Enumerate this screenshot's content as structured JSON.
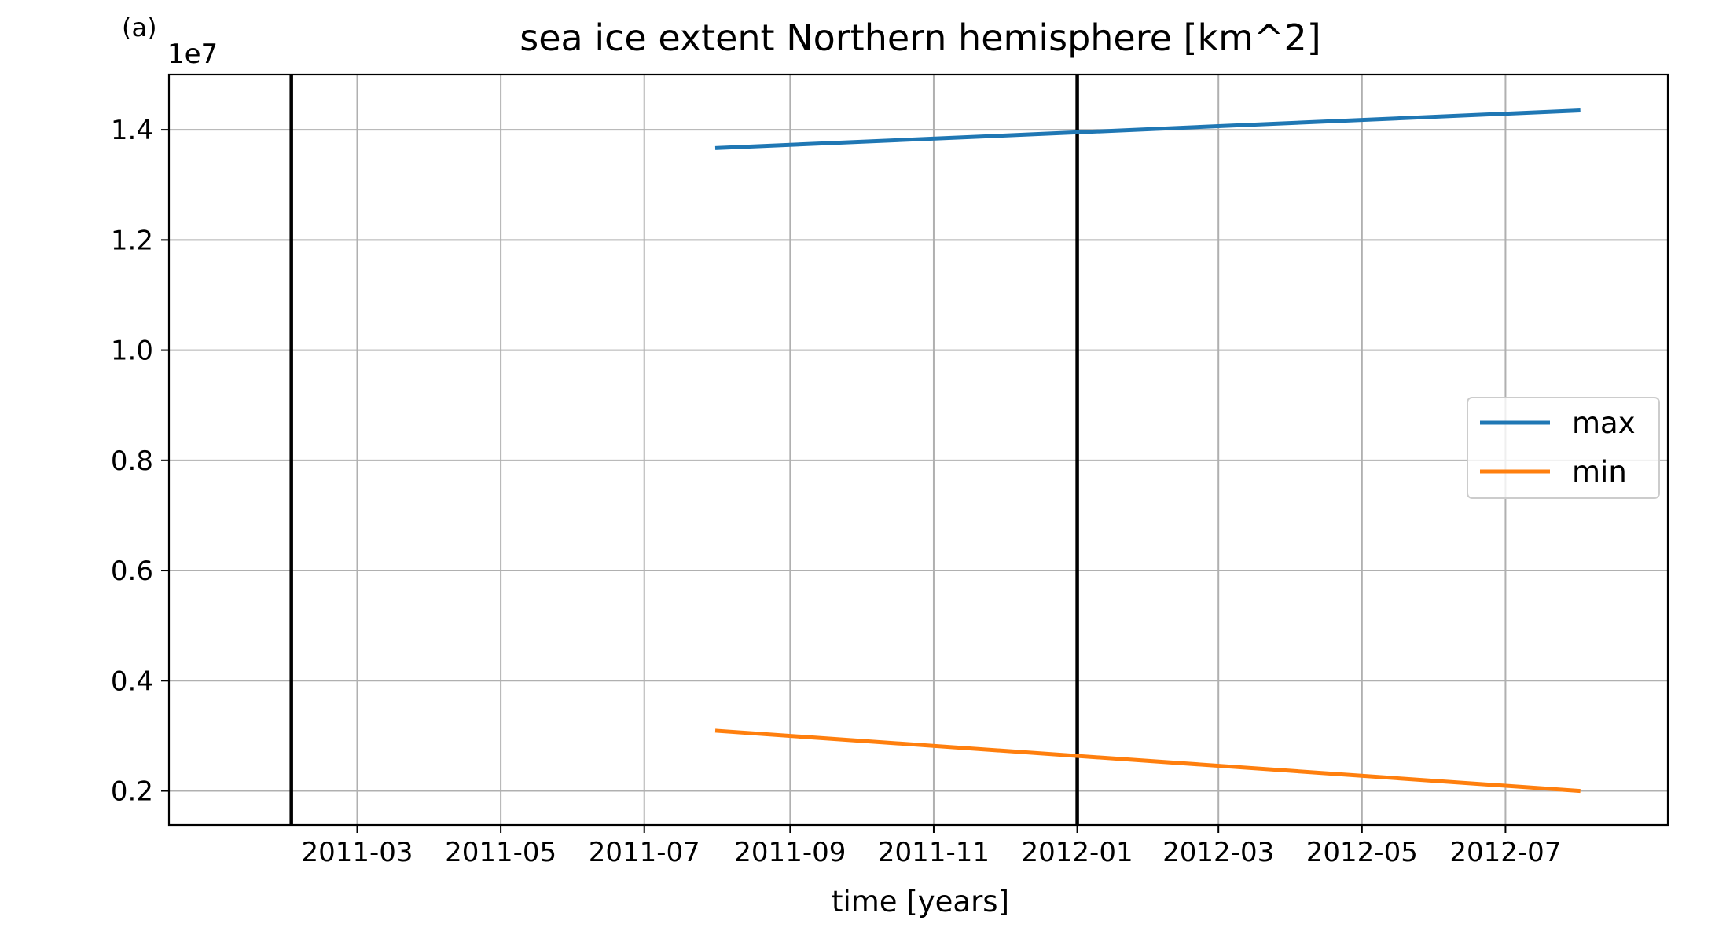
{
  "panel_label": "(a)",
  "chart_data": {
    "type": "line",
    "title": "sea ice extent Northern hemisphere [km^2]",
    "xlabel": "time [years]",
    "ylabel": "",
    "y_offset_label": "1e7",
    "y_scale": 10000000,
    "xlim": [
      "2010-12-11",
      "2012-09-08"
    ],
    "ylim": [
      1380000,
      15000000
    ],
    "x_ticks": [
      {
        "date": "2011-03-01",
        "label": "2011-03"
      },
      {
        "date": "2011-05-01",
        "label": "2011-05"
      },
      {
        "date": "2011-07-01",
        "label": "2011-07"
      },
      {
        "date": "2011-09-01",
        "label": "2011-09"
      },
      {
        "date": "2011-11-01",
        "label": "2011-11"
      },
      {
        "date": "2012-01-01",
        "label": "2012-01"
      },
      {
        "date": "2012-03-01",
        "label": "2012-03"
      },
      {
        "date": "2012-05-01",
        "label": "2012-05"
      },
      {
        "date": "2012-07-01",
        "label": "2012-07"
      }
    ],
    "y_ticks": [
      {
        "value": 2000000,
        "label": "0.2"
      },
      {
        "value": 4000000,
        "label": "0.4"
      },
      {
        "value": 6000000,
        "label": "0.6"
      },
      {
        "value": 8000000,
        "label": "0.8"
      },
      {
        "value": 10000000,
        "label": "1.0"
      },
      {
        "value": 12000000,
        "label": "1.2"
      },
      {
        "value": 14000000,
        "label": "1.4"
      }
    ],
    "grid": true,
    "legend_position": "center-right",
    "vertical_lines": [
      {
        "date": "2011-02-01",
        "color": "#000000"
      },
      {
        "date": "2012-01-01",
        "color": "#000000"
      }
    ],
    "series": [
      {
        "name": "max",
        "color": "#1f77b4",
        "x": [
          "2011-08-01",
          "2012-08-01"
        ],
        "y": [
          13670000,
          14350000
        ]
      },
      {
        "name": "min",
        "color": "#ff7f0e",
        "x": [
          "2011-08-01",
          "2012-08-01"
        ],
        "y": [
          3090000,
          2000000
        ]
      }
    ]
  }
}
